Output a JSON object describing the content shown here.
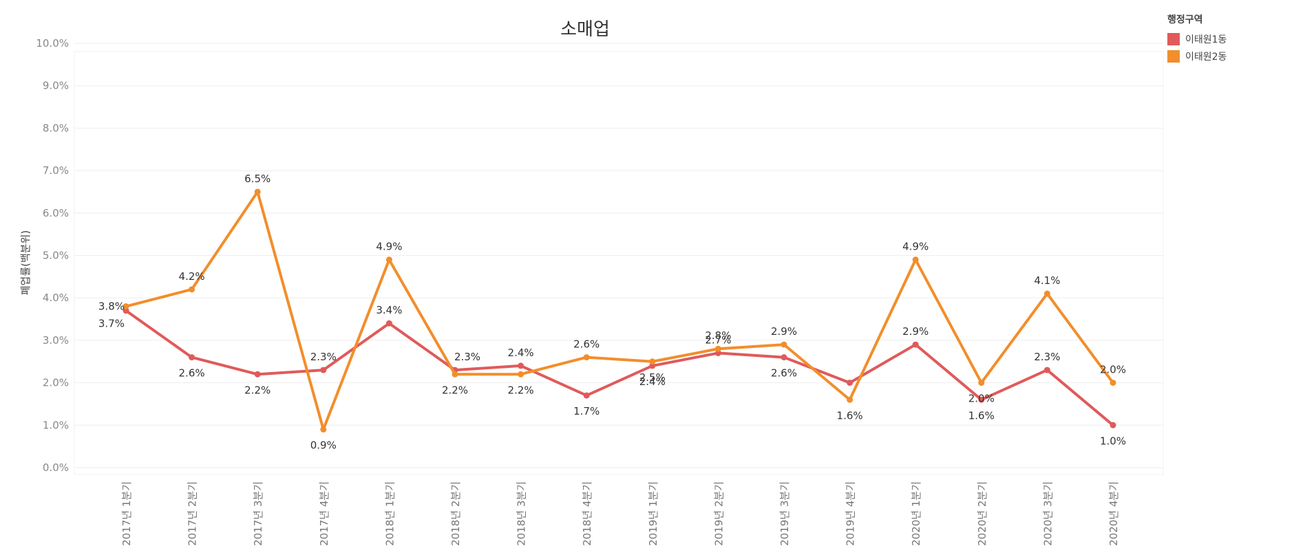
{
  "chart_data": {
    "type": "line",
    "title": "소매업",
    "ylabel": "폐업률(백분위)",
    "xlabel": "",
    "ylim": [
      0,
      10
    ],
    "yticks": [
      "0.0%",
      "1.0%",
      "2.0%",
      "3.0%",
      "4.0%",
      "5.0%",
      "6.0%",
      "7.0%",
      "8.0%",
      "9.0%",
      "10.0%"
    ],
    "categories": [
      "2017년 1분기",
      "2017년 2분기",
      "2017년 3분기",
      "2017년 4분기",
      "2018년 1분기",
      "2018년 2분기",
      "2018년 3분기",
      "2018년 4분기",
      "2019년 1분기",
      "2019년 2분기",
      "2019년 3분기",
      "2019년 4분기",
      "2020년 1분기",
      "2020년 2분기",
      "2020년 3분기",
      "2020년 4분기"
    ],
    "legend": {
      "title": "행정구역",
      "position": "top-right"
    },
    "grid": true,
    "series": [
      {
        "name": "이태원1동",
        "color": "#e05a5b",
        "values": [
          3.7,
          2.6,
          2.2,
          2.3,
          3.4,
          2.3,
          2.4,
          1.7,
          2.4,
          2.7,
          2.6,
          2.0,
          2.9,
          1.6,
          2.3,
          1.0
        ],
        "labels": [
          "3.7%",
          "2.6%",
          "2.2%",
          "2.3%",
          "3.4%",
          "",
          "2.4%",
          "1.7%",
          "2.4%",
          "2.7%",
          "2.6%",
          "",
          "2.9%",
          "1.6%",
          "2.3%",
          "1.0%"
        ]
      },
      {
        "name": "이태원2동",
        "color": "#f28e2b",
        "values": [
          3.8,
          4.2,
          6.5,
          0.9,
          4.9,
          2.2,
          2.2,
          2.6,
          2.5,
          2.8,
          2.9,
          1.6,
          4.9,
          2.0,
          4.1,
          2.0
        ],
        "labels": [
          "3.8%",
          "4.2%",
          "6.5%",
          "0.9%",
          "4.9%",
          "2.2%",
          "2.2%",
          "2.6%",
          "2.5%",
          "2.8%",
          "2.9%",
          "1.6%",
          "4.9%",
          "2.0%",
          "4.1%",
          "2.0%"
        ]
      }
    ],
    "extra_labels": [
      {
        "text": "2.3%",
        "series": 0,
        "index": 5
      }
    ]
  }
}
